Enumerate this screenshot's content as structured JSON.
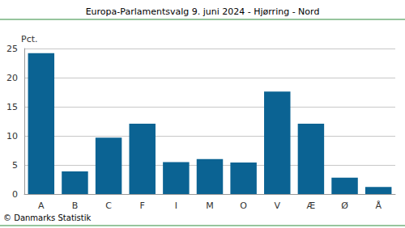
{
  "chart_data": {
    "type": "bar",
    "title": "Europa-Parlamentsvalg 9. juni 2024 - Hjørring - Nord",
    "y_label": "Pct.",
    "source": "© Danmarks Statistik",
    "categories": [
      "A",
      "B",
      "C",
      "F",
      "I",
      "M",
      "O",
      "V",
      "Æ",
      "Ø",
      "Å"
    ],
    "values": [
      24.2,
      3.9,
      9.7,
      12.1,
      5.5,
      6.0,
      5.4,
      17.6,
      12.1,
      2.8,
      1.2
    ],
    "color": "#0b6393",
    "ylim": [
      0,
      25
    ],
    "yticks": [
      0,
      5,
      10,
      15,
      20,
      25
    ],
    "grid": true
  }
}
